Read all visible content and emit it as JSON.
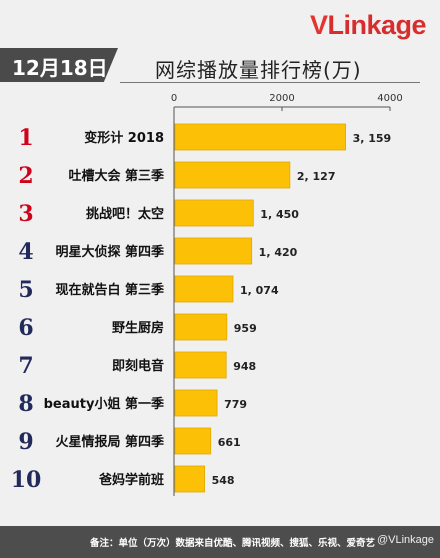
{
  "brand": {
    "logo_text_v": "V",
    "logo_text_rest": "Linkage"
  },
  "date_badge": "12月18日",
  "chart_data": {
    "type": "bar",
    "orientation": "horizontal",
    "title": "网综播放量排行榜(万)",
    "categories": [
      "变形计 2018",
      "吐槽大会 第三季",
      "挑战吧！太空",
      "明星大侦探 第四季",
      "现在就告白 第三季",
      "野生厨房",
      "即刻电音",
      "beauty小姐 第一季",
      "火星情报局 第四季",
      "爸妈学前班"
    ],
    "ranks": [
      "1",
      "2",
      "3",
      "4",
      "5",
      "6",
      "7",
      "8",
      "9",
      "10"
    ],
    "values": [
      3159,
      2127,
      1450,
      1420,
      1074,
      959,
      948,
      779,
      661,
      548
    ],
    "value_labels": [
      "3, 159",
      "2, 127",
      "1, 450",
      "1, 420",
      "1, 074",
      "959",
      "948",
      "779",
      "661",
      "548"
    ],
    "xlim": [
      0,
      4000
    ],
    "xticks": [
      "0",
      "2000",
      "4000"
    ],
    "grid": false,
    "colors": {
      "bar": "#fcc107",
      "bar_stroke": "#e0a800",
      "rank_top3": "#d0021b",
      "rank_rest": "#222a5c"
    }
  },
  "footer": {
    "note": "备注：单位（万次）数据来自优酷、腾讯视频、搜狐、乐视、爱奇艺",
    "watermark": "@VLinkage"
  }
}
